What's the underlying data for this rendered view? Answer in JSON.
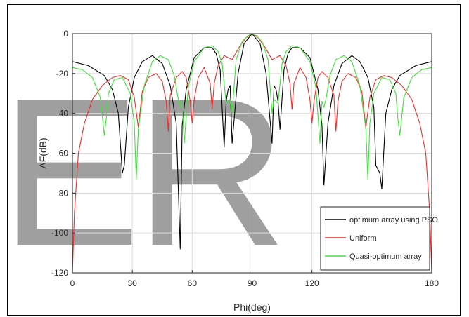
{
  "watermark_text": "ER",
  "chart_data": {
    "type": "line",
    "title": "",
    "xlabel": "Phi(deg)",
    "ylabel": "AF(dB)",
    "xlim": [
      0,
      180
    ],
    "ylim": [
      -120,
      0
    ],
    "xticks": [
      0,
      30,
      60,
      90,
      120,
      180
    ],
    "yticks": [
      0,
      -20,
      -40,
      -60,
      -80,
      -100,
      -120
    ],
    "grid": true,
    "legend_position": "bottom-right",
    "series": [
      {
        "name": "optimum array using PSO",
        "color": "#000000",
        "x": [
          0,
          8,
          16,
          20,
          23,
          25,
          26,
          28,
          31,
          35,
          40,
          45,
          49,
          52,
          54,
          55,
          57,
          61,
          66,
          70,
          72,
          74,
          76,
          77,
          78,
          79,
          80,
          83,
          86,
          90,
          94,
          97,
          100,
          101,
          102,
          103,
          104,
          106,
          108,
          110,
          114,
          119,
          123,
          125,
          126,
          128,
          131,
          135,
          140,
          144,
          148,
          151,
          152,
          154,
          155,
          157,
          160,
          164,
          172,
          180
        ],
        "y": [
          -14,
          -16,
          -21,
          -28,
          -40,
          -70,
          -66,
          -37,
          -22,
          -14,
          -11,
          -15,
          -26,
          -45,
          -108,
          -46,
          -28,
          -12,
          -7,
          -7,
          -10,
          -18,
          -57,
          -34,
          -28,
          -26,
          -55,
          -20,
          -5,
          0,
          -5,
          -20,
          -55,
          -26,
          -28,
          -34,
          -48,
          -18,
          -10,
          -7,
          -7,
          -12,
          -28,
          -46,
          -76,
          -45,
          -26,
          -15,
          -11,
          -14,
          -22,
          -37,
          -66,
          -70,
          -78,
          -40,
          -28,
          -21,
          -16,
          -14
        ]
      },
      {
        "name": "Uniform",
        "color": "#e8302e",
        "x": [
          0,
          1,
          3,
          6,
          10,
          15,
          20,
          24,
          28,
          31,
          33,
          35,
          38,
          42,
          45,
          47,
          48,
          49,
          52,
          55,
          57,
          59,
          60,
          61,
          63,
          66,
          69,
          70,
          71,
          73,
          76,
          80,
          84,
          87,
          90,
          93,
          96,
          100,
          104,
          107,
          109,
          110,
          111,
          114,
          117,
          119,
          120,
          121,
          123,
          125,
          128,
          131,
          132,
          133,
          135,
          138,
          142,
          145,
          147,
          149,
          152,
          156,
          160,
          165,
          170,
          174,
          177,
          179,
          180
        ],
        "y": [
          -120,
          -90,
          -60,
          -45,
          -33,
          -26,
          -22,
          -21,
          -23,
          -32,
          -47,
          -29,
          -22,
          -20,
          -24,
          -34,
          -49,
          -31,
          -22,
          -19,
          -22,
          -34,
          -45,
          -33,
          -22,
          -17,
          -25,
          -38,
          -25,
          -16,
          -11,
          -13,
          -6,
          -2,
          0,
          -2,
          -6,
          -13,
          -11,
          -16,
          -25,
          -38,
          -25,
          -17,
          -22,
          -33,
          -45,
          -34,
          -22,
          -19,
          -22,
          -31,
          -49,
          -34,
          -24,
          -20,
          -22,
          -29,
          -47,
          -32,
          -23,
          -21,
          -22,
          -26,
          -33,
          -45,
          -60,
          -90,
          -120
        ]
      },
      {
        "name": "Quasi-optimum array",
        "color": "#3fe13a",
        "x": [
          0,
          5,
          10,
          14,
          16,
          17,
          18,
          21,
          25,
          29,
          31,
          32,
          33,
          36,
          40,
          44,
          48,
          51,
          53,
          54,
          55,
          56,
          58,
          61,
          66,
          70,
          73,
          75,
          77,
          79,
          80,
          82,
          85,
          88,
          90,
          92,
          95,
          98,
          100,
          101,
          103,
          105,
          107,
          110,
          114,
          119,
          122,
          124,
          125,
          126,
          127,
          129,
          132,
          136,
          140,
          144,
          147,
          148,
          149,
          151,
          155,
          159,
          162,
          163,
          164,
          166,
          170,
          175,
          180
        ],
        "y": [
          -17,
          -18,
          -22,
          -32,
          -51,
          -42,
          -30,
          -23,
          -22,
          -30,
          -45,
          -73,
          -48,
          -26,
          -14,
          -11,
          -13,
          -21,
          -33,
          -37,
          -34,
          -55,
          -27,
          -14,
          -7,
          -6,
          -9,
          -15,
          -35,
          -33,
          -40,
          -13,
          -4,
          -1,
          0,
          -1,
          -4,
          -13,
          -40,
          -33,
          -35,
          -15,
          -9,
          -6,
          -7,
          -14,
          -27,
          -55,
          -34,
          -37,
          -33,
          -21,
          -13,
          -11,
          -14,
          -26,
          -48,
          -73,
          -45,
          -30,
          -22,
          -23,
          -30,
          -42,
          -51,
          -32,
          -22,
          -18,
          -17
        ]
      }
    ]
  }
}
